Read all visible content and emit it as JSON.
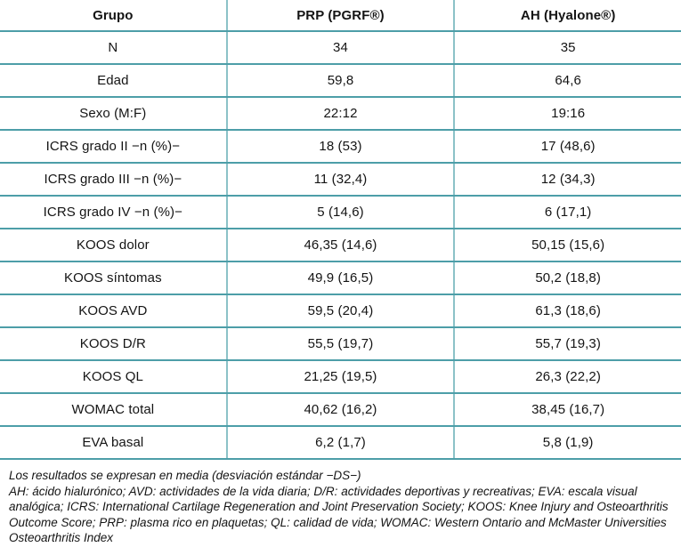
{
  "colors": {
    "rule_horizontal": "#4d9ea8",
    "rule_vertical": "#8cc2c8",
    "text": "#141414",
    "background": "#ffffff"
  },
  "table": {
    "columns": [
      "Grupo",
      "PRP (PGRF®)",
      "AH (Hyalone®)"
    ],
    "rows": [
      {
        "label": "N",
        "prp": "34",
        "ah": "35"
      },
      {
        "label": "Edad",
        "prp": "59,8",
        "ah": "64,6"
      },
      {
        "label": "Sexo (M:F)",
        "prp": "22:12",
        "ah": "19:16"
      },
      {
        "label": "ICRS grado II −n (%)−",
        "prp": "18 (53)",
        "ah": "17 (48,6)"
      },
      {
        "label": "ICRS grado III −n (%)−",
        "prp": "11 (32,4)",
        "ah": "12 (34,3)"
      },
      {
        "label": "ICRS grado IV −n (%)−",
        "prp": "5 (14,6)",
        "ah": "6 (17,1)"
      },
      {
        "label": "KOOS dolor",
        "prp": "46,35 (14,6)",
        "ah": "50,15 (15,6)"
      },
      {
        "label": "KOOS síntomas",
        "prp": "49,9 (16,5)",
        "ah": "50,2 (18,8)"
      },
      {
        "label": "KOOS AVD",
        "prp": "59,5 (20,4)",
        "ah": "61,3 (18,6)"
      },
      {
        "label": "KOOS D/R",
        "prp": "55,5 (19,7)",
        "ah": "55,7 (19,3)"
      },
      {
        "label": "KOOS QL",
        "prp": "21,25 (19,5)",
        "ah": "26,3 (22,2)"
      },
      {
        "label": "WOMAC total",
        "prp": "40,62 (16,2)",
        "ah": "38,45 (16,7)"
      },
      {
        "label": "EVA basal",
        "prp": "6,2 (1,7)",
        "ah": "5,8 (1,9)"
      }
    ]
  },
  "footnote": {
    "line1": "Los resultados se expresan en media (desviación estándar −DS−)",
    "line2": "AH: ácido hialurónico; AVD: actividades de la vida diaria; D/R: actividades deportivas y recreativas; EVA: escala visual analógica; ICRS: International Cartilage Regeneration and Joint Preservation Society; KOOS: Knee Injury and Osteoarthritis Outcome Score; PRP: plasma rico en plaquetas; QL: calidad de vida; WOMAC: Western Ontario and McMaster Universities Osteoarthritis Index"
  }
}
